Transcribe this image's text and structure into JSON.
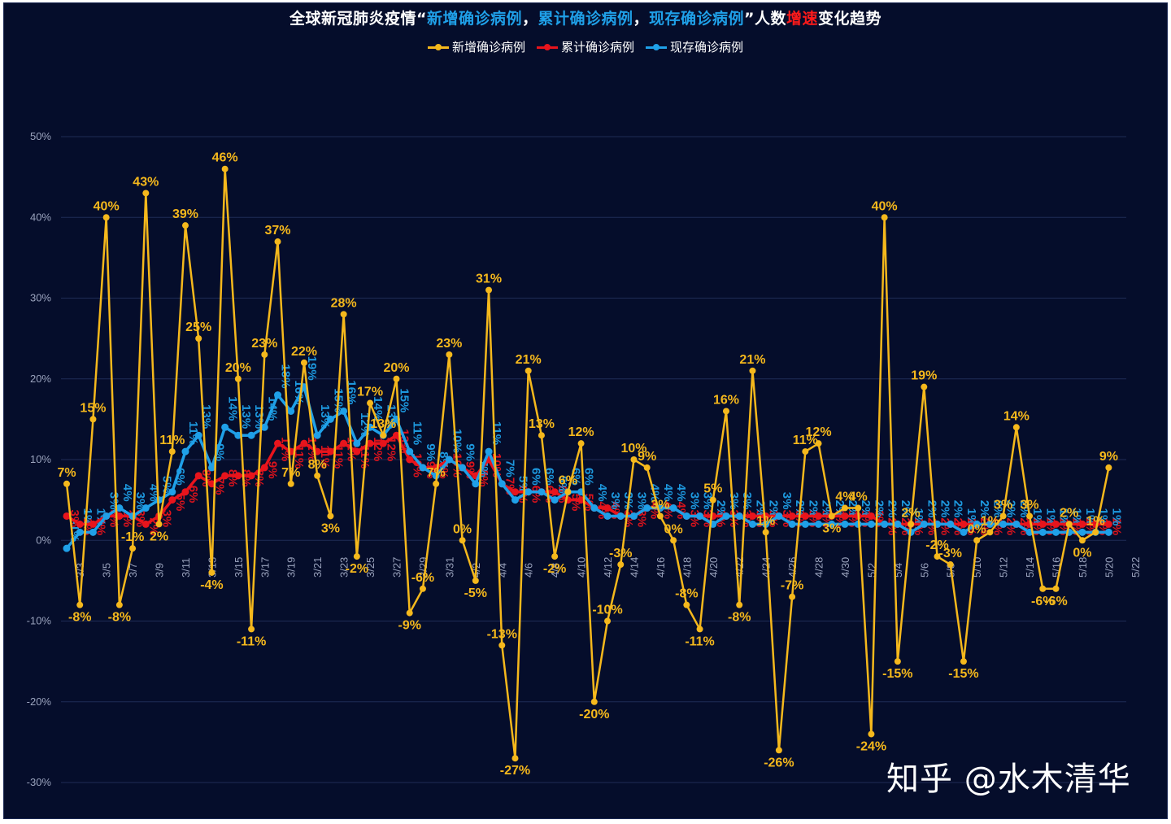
{
  "title_parts": [
    {
      "text": "全球新冠肺炎疫情“",
      "color": "#ffffff"
    },
    {
      "text": "新增确诊病例",
      "color": "#1fa0e8"
    },
    {
      "text": "，",
      "color": "#ffffff"
    },
    {
      "text": "累计确诊病例",
      "color": "#1fa0e8"
    },
    {
      "text": "，",
      "color": "#ffffff"
    },
    {
      "text": "现存确诊病例",
      "color": "#1fa0e8"
    },
    {
      "text": "”人数",
      "color": "#ffffff"
    },
    {
      "text": "增速",
      "color": "#ff1a1a"
    },
    {
      "text": "变化趋势",
      "color": "#ffffff"
    }
  ],
  "watermark": "知乎 @水木清华",
  "chart_data": {
    "type": "line",
    "ylim": [
      -0.3,
      0.5
    ],
    "yticks": [
      "50%",
      "40%",
      "30%",
      "20%",
      "10%",
      "0%",
      "-10%",
      "-20%",
      "-30%"
    ],
    "ytick_values": [
      0.5,
      0.4,
      0.3,
      0.2,
      0.1,
      0.0,
      -0.1,
      -0.2,
      -0.3
    ],
    "grid": true,
    "legend": "top-center",
    "x": [
      "3/2",
      "3/3",
      "3/4",
      "3/5",
      "3/6",
      "3/7",
      "3/8",
      "3/9",
      "3/10",
      "3/11",
      "3/12",
      "3/13",
      "3/14",
      "3/15",
      "3/16",
      "3/17",
      "3/18",
      "3/19",
      "3/20",
      "3/21",
      "3/22",
      "3/23",
      "3/24",
      "3/25",
      "3/26",
      "3/27",
      "3/28",
      "3/29",
      "3/30",
      "3/31",
      "4/1",
      "4/2",
      "4/3",
      "4/4",
      "4/5",
      "4/6",
      "4/7",
      "4/8",
      "4/9",
      "4/10",
      "4/11",
      "4/12",
      "4/13",
      "4/14",
      "4/15",
      "4/16",
      "4/17",
      "4/18",
      "4/19",
      "4/20",
      "4/21",
      "4/22",
      "4/23",
      "4/24",
      "4/25",
      "4/26",
      "4/27",
      "4/28",
      "4/29",
      "4/30",
      "5/1",
      "5/2",
      "5/3",
      "5/4",
      "5/5",
      "5/6",
      "5/7",
      "5/8",
      "5/9",
      "5/10",
      "5/11",
      "5/12",
      "5/13",
      "5/14",
      "5/15",
      "5/16",
      "5/17",
      "5/18",
      "5/19",
      "5/20",
      "5/21",
      "5/22"
    ],
    "xtick_labels": [
      "3/3",
      "3/5",
      "3/7",
      "3/9",
      "3/11",
      "3/13",
      "3/15",
      "3/17",
      "3/19",
      "3/21",
      "3/23",
      "3/25",
      "3/27",
      "3/29",
      "3/31",
      "4/2",
      "4/4",
      "4/6",
      "4/8",
      "4/10",
      "4/12",
      "4/14",
      "4/16",
      "4/18",
      "4/20",
      "4/22",
      "4/24",
      "4/26",
      "4/28",
      "4/30",
      "5/2",
      "5/4",
      "5/6",
      "5/8",
      "5/10",
      "5/12",
      "5/14",
      "5/16",
      "5/18",
      "5/20",
      "5/22"
    ],
    "series": [
      {
        "name": "新增确诊病例",
        "color": "#f5b81c",
        "values": [
          0.07,
          -0.08,
          0.15,
          0.4,
          -0.08,
          -0.01,
          0.43,
          0.02,
          0.11,
          0.39,
          0.25,
          -0.04,
          0.46,
          0.2,
          -0.11,
          0.23,
          0.37,
          0.07,
          0.22,
          0.08,
          0.03,
          0.28,
          -0.02,
          0.17,
          0.13,
          0.2,
          -0.09,
          -0.06,
          0.07,
          0.23,
          0.0,
          -0.05,
          0.31,
          -0.13,
          -0.27,
          0.21,
          0.13,
          -0.02,
          0.06,
          0.12,
          -0.2,
          -0.1,
          -0.03,
          0.1,
          0.09,
          0.03,
          0.0,
          -0.08,
          -0.11,
          0.05,
          0.16,
          -0.08,
          0.21,
          0.01,
          -0.26,
          -0.07,
          0.11,
          0.12,
          0.03,
          0.04,
          0.04,
          -0.24,
          0.4,
          -0.15,
          0.02,
          0.19,
          -0.02,
          -0.03,
          -0.15,
          0.0,
          0.01,
          0.03,
          0.14,
          0.03,
          -0.06,
          -0.06,
          0.02,
          0.0,
          0.01,
          0.09,
          null,
          null
        ],
        "labels": [
          "7%",
          "-8%",
          "15%",
          "40%",
          "-8%",
          "-1%",
          "43%",
          "2%",
          "11%",
          "39%",
          "25%",
          "-4%",
          "46%",
          "20%",
          "-11%",
          "23%",
          "37%",
          "7%",
          "22%",
          "8%",
          "3%",
          "28%",
          "-2%",
          "17%",
          "13%",
          "20%",
          "-9%",
          "-6%",
          "7%",
          "23%",
          "0%",
          "-5%",
          "31%",
          "-13%",
          "-27%",
          "21%",
          "13%",
          "-2%",
          "6%",
          "12%",
          "-20%",
          "-10%",
          "-3%",
          "10%",
          "9%",
          "3%",
          "0%",
          "-8%",
          "-11%",
          "5%",
          "16%",
          "-8%",
          "21%",
          "1%",
          "-26%",
          "-7%",
          "11%",
          "12%",
          "3%",
          "4%",
          "4%",
          "-24%",
          "40%",
          "-15%",
          "2%",
          "19%",
          "-2%",
          "-3%",
          "-15%",
          "0%",
          "1%",
          "3%",
          "14%",
          "3%",
          "-6%",
          "-6%",
          "2%",
          "0%",
          "1%",
          "9%",
          "",
          ""
        ]
      },
      {
        "name": "累计确诊病例",
        "color": "#e8141c",
        "values": [
          0.03,
          0.02,
          0.02,
          0.03,
          0.03,
          0.03,
          0.02,
          0.03,
          0.05,
          0.06,
          0.08,
          0.07,
          0.08,
          0.08,
          0.08,
          0.09,
          0.12,
          0.11,
          0.12,
          0.11,
          0.11,
          0.12,
          0.11,
          0.12,
          0.12,
          0.13,
          0.1,
          0.09,
          0.09,
          0.1,
          0.09,
          0.08,
          0.1,
          0.07,
          0.06,
          0.06,
          0.06,
          0.06,
          0.05,
          0.05,
          0.04,
          0.04,
          0.03,
          0.03,
          0.04,
          0.04,
          0.04,
          0.03,
          0.03,
          0.03,
          0.03,
          0.03,
          0.03,
          0.03,
          0.03,
          0.03,
          0.03,
          0.03,
          0.03,
          0.03,
          0.03,
          0.03,
          0.02,
          0.02,
          0.02,
          0.02,
          0.02,
          0.02,
          0.02,
          0.02,
          0.02,
          0.02,
          0.02,
          0.02,
          0.02,
          0.02,
          0.02,
          0.02,
          0.02,
          0.02,
          null,
          null
        ],
        "labels": [
          "3%",
          "2%",
          "2%",
          "3%",
          "3%",
          "3%",
          "2%",
          "3%",
          "5%",
          "6%",
          "8%",
          "7%",
          "8%",
          "8%",
          "8%",
          "9%",
          "12%",
          "11%",
          "12%",
          "11%",
          "11%",
          "12%",
          "11%",
          "12%",
          "12%",
          "13%",
          "10%",
          "9%",
          "9%",
          "10%",
          "9%",
          "8%",
          "10%",
          "7%",
          "6%",
          "6%",
          "6%",
          "6%",
          "5%",
          "5%",
          "4%",
          "4%",
          "3%",
          "3%",
          "4%",
          "4%",
          "4%",
          "3%",
          "3%",
          "3%",
          "3%",
          "3%",
          "3%",
          "3%",
          "3%",
          "3%",
          "3%",
          "3%",
          "3%",
          "3%",
          "3%",
          "3%",
          "2%",
          "2%",
          "2%",
          "2%",
          "2%",
          "2%",
          "2%",
          "2%",
          "2%",
          "2%",
          "2%",
          "2%",
          "2%",
          "2%",
          "2%",
          "2%",
          "2%",
          "2%",
          "",
          ""
        ]
      },
      {
        "name": "现存确诊病例",
        "color": "#1fa0e8",
        "values": [
          -0.01,
          0.01,
          0.01,
          0.03,
          0.04,
          0.03,
          0.04,
          0.05,
          0.06,
          0.11,
          0.13,
          0.09,
          0.14,
          0.13,
          0.13,
          0.14,
          0.18,
          0.16,
          0.19,
          0.13,
          0.15,
          0.16,
          0.12,
          0.14,
          0.13,
          0.15,
          0.11,
          0.09,
          0.08,
          0.1,
          0.09,
          0.07,
          0.11,
          0.07,
          0.05,
          0.06,
          0.06,
          0.05,
          0.06,
          0.06,
          0.04,
          0.03,
          0.03,
          0.03,
          0.04,
          0.04,
          0.04,
          0.03,
          0.03,
          0.02,
          0.03,
          0.03,
          0.02,
          0.02,
          0.03,
          0.02,
          0.02,
          0.02,
          0.02,
          0.02,
          0.02,
          0.02,
          0.02,
          0.02,
          0.01,
          0.02,
          0.02,
          0.02,
          0.01,
          0.02,
          0.02,
          0.02,
          0.02,
          0.01,
          0.01,
          0.01,
          0.01,
          0.01,
          0.01,
          0.01,
          null,
          null
        ],
        "labels": [
          "-1%",
          "1%",
          "1%",
          "3%",
          "4%",
          "3%",
          "4%",
          "5%",
          "6%",
          "11%",
          "13%",
          "9%",
          "14%",
          "13%",
          "13%",
          "14%",
          "18%",
          "16%",
          "19%",
          "13%",
          "15%",
          "16%",
          "12%",
          "14%",
          "13%",
          "15%",
          "11%",
          "9%",
          "8%",
          "10%",
          "9%",
          "7%",
          "11%",
          "7%",
          "5%",
          "6%",
          "6%",
          "5%",
          "6%",
          "6%",
          "4%",
          "3%",
          "3%",
          "3%",
          "4%",
          "4%",
          "4%",
          "3%",
          "3%",
          "2%",
          "3%",
          "3%",
          "2%",
          "2%",
          "3%",
          "2%",
          "2%",
          "2%",
          "2%",
          "2%",
          "2%",
          "2%",
          "2%",
          "2%",
          "1%",
          "2%",
          "2%",
          "2%",
          "1%",
          "2%",
          "2%",
          "2%",
          "2%",
          "1%",
          "1%",
          "1%",
          "1%",
          "1%",
          "1%",
          "1%",
          "",
          ""
        ]
      }
    ]
  }
}
